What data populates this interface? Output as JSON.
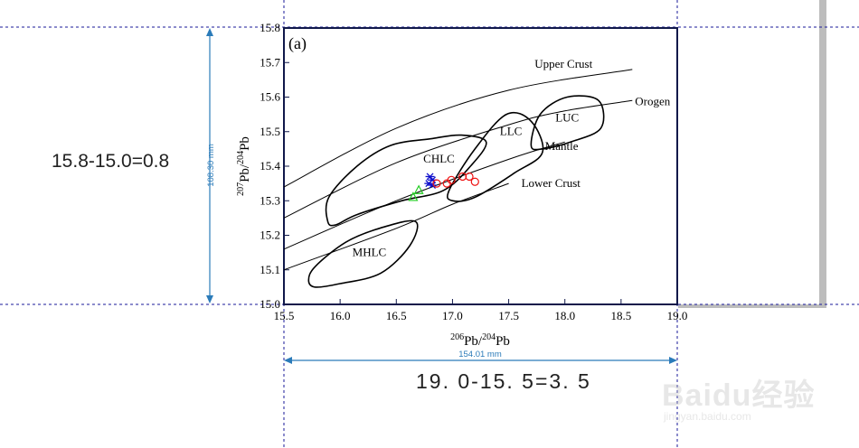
{
  "chart_data": {
    "type": "scatter",
    "title": "",
    "panel_label": "(a)",
    "xlabel": "206Pb/204Pb",
    "ylabel": "207Pb/204Pb",
    "xlim": [
      15.5,
      19.0
    ],
    "ylim": [
      15.0,
      15.8
    ],
    "xticks": [
      "15.5",
      "16.0",
      "16.5",
      "17.0",
      "17.5",
      "18.0",
      "18.5",
      "19.0"
    ],
    "yticks": [
      "15.0",
      "15.1",
      "15.2",
      "15.3",
      "15.4",
      "15.5",
      "15.6",
      "15.7",
      "15.8"
    ],
    "curves": [
      {
        "name": "Upper Crust",
        "points": [
          [
            15.5,
            15.34
          ],
          [
            16.5,
            15.51
          ],
          [
            17.5,
            15.62
          ],
          [
            18.6,
            15.68
          ]
        ]
      },
      {
        "name": "Orogen",
        "points": [
          [
            15.5,
            15.25
          ],
          [
            16.5,
            15.41
          ],
          [
            17.5,
            15.52
          ],
          [
            18.0,
            15.56
          ],
          [
            18.6,
            15.59
          ]
        ]
      },
      {
        "name": "Mantle",
        "points": [
          [
            15.5,
            15.16
          ],
          [
            16.5,
            15.3
          ],
          [
            17.5,
            15.42
          ],
          [
            18.0,
            15.47
          ]
        ]
      },
      {
        "name": "Lower Crust",
        "points": [
          [
            15.5,
            15.1
          ],
          [
            16.5,
            15.22
          ],
          [
            17.0,
            15.29
          ],
          [
            17.5,
            15.35
          ]
        ]
      }
    ],
    "fields": [
      {
        "name": "CHLC",
        "label_at": [
          16.88,
          15.41
        ],
        "points": [
          [
            15.89,
            15.24
          ],
          [
            15.9,
            15.31
          ],
          [
            16.15,
            15.4
          ],
          [
            16.45,
            15.46
          ],
          [
            16.82,
            15.48
          ],
          [
            17.08,
            15.49
          ],
          [
            17.3,
            15.47
          ],
          [
            17.16,
            15.4
          ],
          [
            16.92,
            15.33
          ],
          [
            16.55,
            15.3
          ],
          [
            16.15,
            15.26
          ],
          [
            15.96,
            15.23
          ]
        ]
      },
      {
        "name": "LLC",
        "label_at": [
          17.52,
          15.49
        ],
        "points": [
          [
            16.97,
            15.33
          ],
          [
            17.2,
            15.45
          ],
          [
            17.48,
            15.55
          ],
          [
            17.7,
            15.53
          ],
          [
            17.8,
            15.44
          ],
          [
            17.55,
            15.38
          ],
          [
            17.2,
            15.31
          ],
          [
            17.0,
            15.3
          ]
        ]
      },
      {
        "name": "LUC",
        "label_at": [
          18.02,
          15.53
        ],
        "points": [
          [
            17.7,
            15.46
          ],
          [
            17.78,
            15.55
          ],
          [
            18.02,
            15.6
          ],
          [
            18.3,
            15.59
          ],
          [
            18.32,
            15.51
          ],
          [
            18.05,
            15.47
          ],
          [
            17.8,
            15.45
          ]
        ]
      },
      {
        "name": "MHLC",
        "label_at": [
          16.26,
          15.14
        ],
        "points": [
          [
            15.72,
            15.07
          ],
          [
            15.78,
            15.11
          ],
          [
            16.05,
            15.18
          ],
          [
            16.35,
            15.22
          ],
          [
            16.67,
            15.24
          ],
          [
            16.62,
            15.17
          ],
          [
            16.36,
            15.09
          ],
          [
            16.0,
            15.06
          ],
          [
            15.78,
            15.05
          ]
        ]
      }
    ],
    "series": [
      {
        "marker": "star",
        "color": "#1010cc",
        "points": [
          [
            16.8,
            15.37
          ],
          [
            16.82,
            15.36
          ],
          [
            16.79,
            15.35
          ],
          [
            16.82,
            15.345
          ]
        ]
      },
      {
        "marker": "circle",
        "color": "#ee1111",
        "points": [
          [
            16.86,
            15.35
          ],
          [
            16.95,
            15.35
          ],
          [
            16.99,
            15.36
          ],
          [
            17.09,
            15.37
          ],
          [
            17.15,
            15.37
          ],
          [
            17.2,
            15.355
          ]
        ]
      },
      {
        "marker": "triangle",
        "color": "#22cc22",
        "points": [
          [
            16.65,
            15.31
          ],
          [
            16.7,
            15.33
          ]
        ]
      }
    ]
  },
  "annotations": {
    "height_dimension": "108.30 mm",
    "width_dimension": "154.01 mm",
    "calc_vertical": "15.8-15.0=0.8",
    "calc_horizontal": "19. 0-15. 5=3. 5"
  },
  "watermark": {
    "brand": "Baidu经验",
    "url": "jingyan.baidu.com"
  },
  "colors": {
    "frame": "#10184a",
    "guide": "#1a1a99",
    "dimension": "#2b7bb9",
    "shadow": "#bdbdbd"
  }
}
